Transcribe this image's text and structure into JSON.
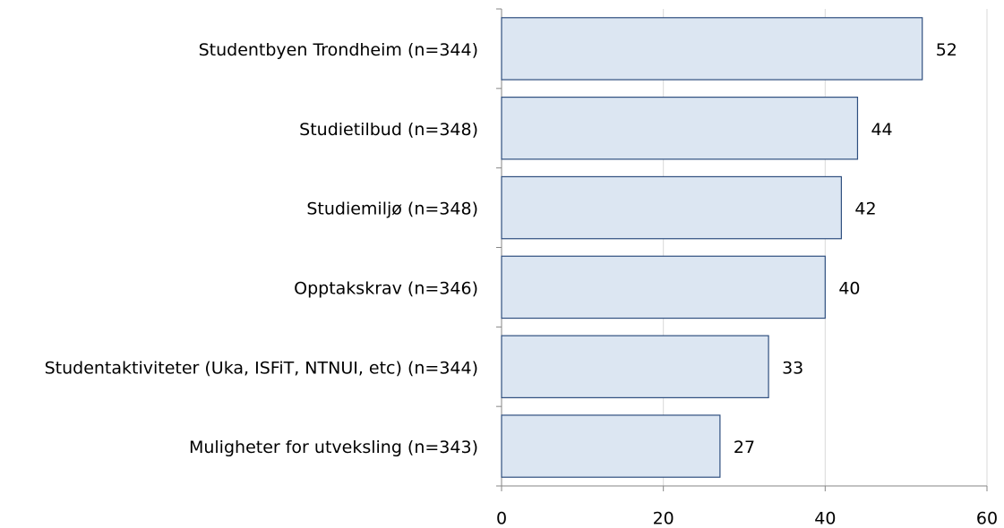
{
  "chart_data": {
    "type": "bar",
    "orientation": "horizontal",
    "categories": [
      "Studentbyen Trondheim (n=344)",
      "Studietilbud (n=348)",
      "Studiemiljø (n=348)",
      "Opptakskrav (n=346)",
      "Studentaktiviteter (Uka, ISFiT, NTNUI, etc) (n=344)",
      "Muligheter for utveksling (n=343)"
    ],
    "values": [
      52,
      44,
      42,
      40,
      33,
      27
    ],
    "color": "#dce6f2",
    "edgecolor": "#2f4f7f",
    "xlim": [
      0,
      60
    ],
    "xticks": [
      0,
      20,
      40,
      60
    ],
    "grid": true
  }
}
